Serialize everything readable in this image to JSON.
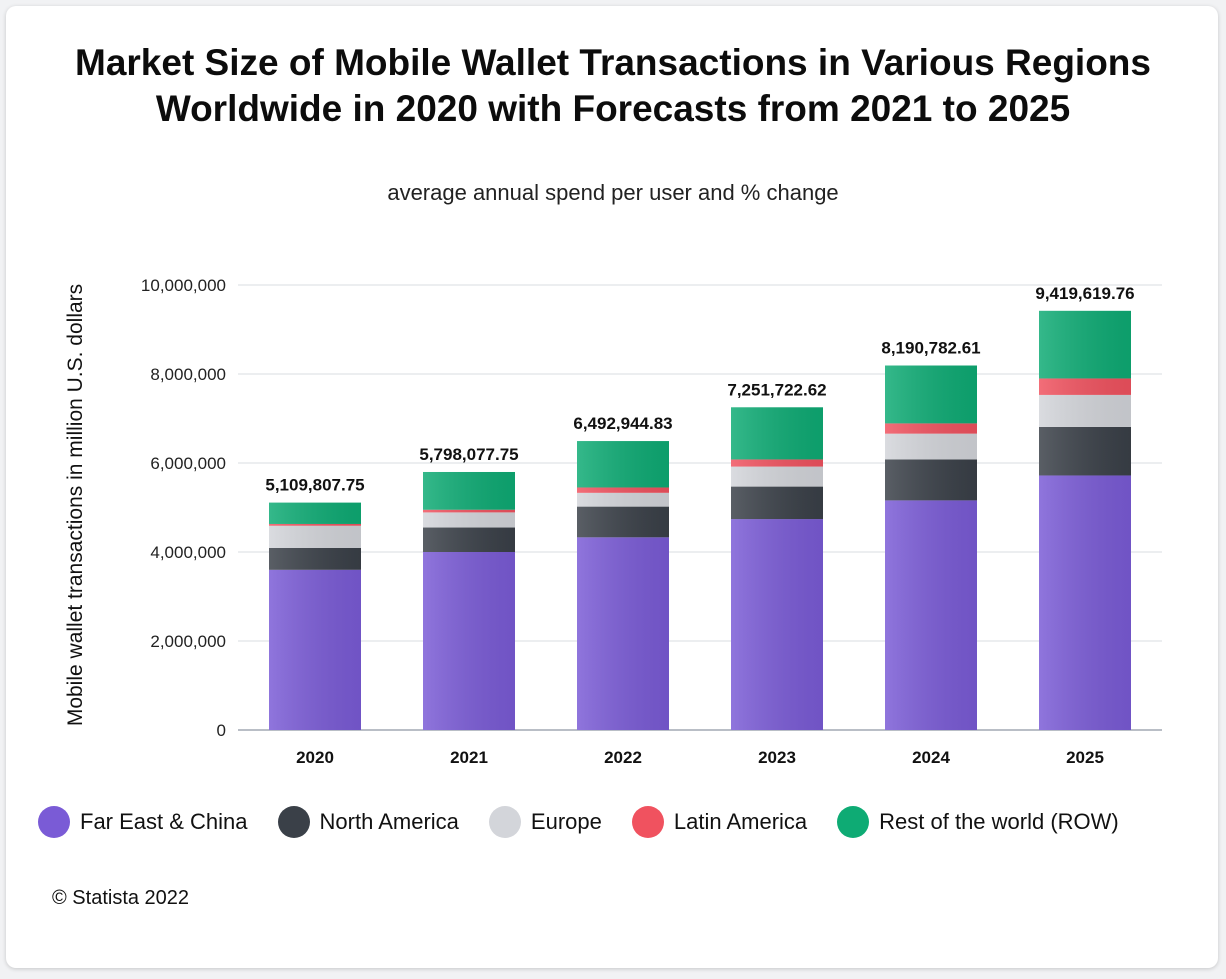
{
  "page": {
    "credit": "© Statista 2022"
  },
  "chart_data": {
    "type": "bar",
    "stacked": true,
    "title_line1": "Market Size of Mobile Wallet Transactions in Various Regions",
    "title_line2": "Worldwide in 2020 with Forecasts from 2021 to 2025",
    "subtitle": "average annual spend per user and % change",
    "xlabel": "",
    "ylabel": "Mobile wallet transactions in million U.S. dollars",
    "ylim": [
      0,
      10000000
    ],
    "yticks": [
      0,
      2000000,
      4000000,
      6000000,
      8000000,
      10000000
    ],
    "ytick_labels": [
      "0",
      "2,000,000",
      "4,000,000",
      "6,000,000",
      "8,000,000",
      "10,000,000"
    ],
    "grid": true,
    "legend_position": "bottom",
    "categories": [
      "2020",
      "2021",
      "2022",
      "2023",
      "2024",
      "2025"
    ],
    "totals": [
      5109807.75,
      5798077.75,
      6492944.83,
      7251722.62,
      8190782.61,
      9419619.76
    ],
    "total_labels": [
      "5,109,807.75",
      "5,798,077.75",
      "6,492,944.83",
      "7,251,722.62",
      "8,190,782.61",
      "9,419,619.76"
    ],
    "series": [
      {
        "name": "Far East & China",
        "color": "#7a5bd6",
        "values": [
          3600000,
          4000000,
          4330000,
          4740000,
          5160000,
          5720000
        ]
      },
      {
        "name": "North America",
        "color": "#3a4048",
        "values": [
          490000,
          550000,
          690000,
          730000,
          920000,
          1090000
        ]
      },
      {
        "name": "Europe",
        "color": "#d3d5da",
        "values": [
          500000,
          340000,
          310000,
          450000,
          580000,
          720000
        ]
      },
      {
        "name": "Latin America",
        "color": "#f0525f",
        "values": [
          40000,
          60000,
          120000,
          160000,
          230000,
          370000
        ]
      },
      {
        "name": "Rest of the world (ROW)",
        "color": "#0eab74",
        "values": [
          479807.75,
          848077.75,
          1042944.83,
          1171722.62,
          1300782.61,
          1519619.76
        ]
      }
    ]
  }
}
